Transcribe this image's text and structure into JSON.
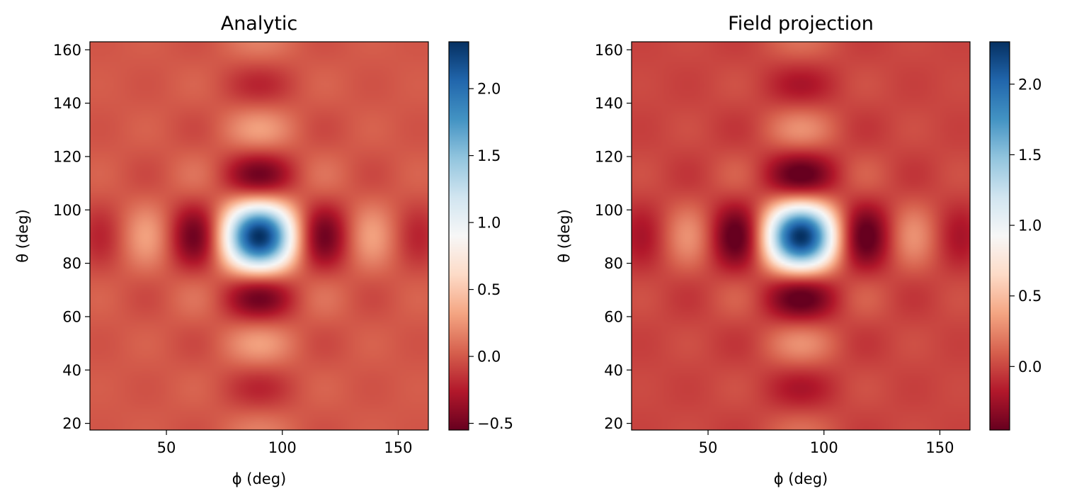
{
  "chart_data": [
    {
      "type": "heatmap",
      "title": "Analytic",
      "xlabel": "ϕ (deg)",
      "ylabel": "θ (deg)",
      "xlim": [
        17,
        163
      ],
      "ylim": [
        17.5,
        163
      ],
      "xticks": [
        50,
        100,
        150
      ],
      "yticks": [
        20,
        40,
        60,
        80,
        100,
        120,
        140,
        160
      ],
      "colormap": "RdBu",
      "colorbar": {
        "vmin": -0.55,
        "vmax": 2.35,
        "ticks": [
          -0.5,
          0.0,
          0.5,
          1.0,
          1.5,
          2.0
        ],
        "tick_labels": [
          "−0.5",
          "0.0",
          "0.5",
          "1.0",
          "1.5",
          "2.0"
        ]
      },
      "center": {
        "phi": 90,
        "theta": 90
      },
      "peak_value": 2.35,
      "min_value": -0.55,
      "background_value": 0.0
    },
    {
      "type": "heatmap",
      "title": "Field projection",
      "xlabel": "ϕ (deg)",
      "ylabel": "θ (deg)",
      "xlim": [
        17,
        163
      ],
      "ylim": [
        17.5,
        163
      ],
      "xticks": [
        50,
        100,
        150
      ],
      "yticks": [
        20,
        40,
        60,
        80,
        100,
        120,
        140,
        160
      ],
      "colormap": "RdBu",
      "colorbar": {
        "vmin": -0.45,
        "vmax": 2.3,
        "ticks": [
          0.0,
          0.5,
          1.0,
          1.5,
          2.0
        ],
        "tick_labels": [
          "0.0",
          "0.5",
          "1.0",
          "1.5",
          "2.0"
        ]
      },
      "center": {
        "phi": 90,
        "theta": 90
      },
      "peak_value": 2.3,
      "min_value": -0.45,
      "background_value": 0.0
    }
  ]
}
